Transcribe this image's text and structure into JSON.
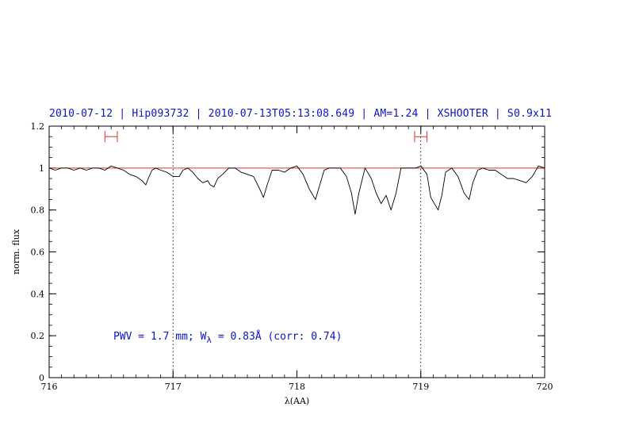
{
  "title": "2010-07-12 | Hip093732 | 2010-07-13T05:13:08.649 | AM=1.24 | XSHOOTER | S0.9x11",
  "colors": {
    "title": "#0a14c8",
    "spectrum": "#000000",
    "continuum": "#e03030",
    "markers": "#e03030",
    "annotation": "#0a14c8"
  },
  "chart_data": {
    "type": "line",
    "xlabel": "λ(AA)",
    "ylabel": "norm. flux",
    "xlim": [
      716,
      720
    ],
    "ylim": [
      0,
      1.2
    ],
    "xticks": [
      716,
      717,
      718,
      719,
      720
    ],
    "xtick_labels": [
      "716",
      "717",
      "718",
      "719",
      "720"
    ],
    "yticks": [
      0,
      0.2,
      0.4,
      0.6,
      0.8,
      1,
      1.2
    ],
    "ytick_labels": [
      "0",
      "0.2",
      "0.4",
      "0.6",
      "0.8",
      "1",
      "1.2"
    ],
    "continuum": 1.0,
    "vlines": [
      717.0,
      719.0
    ],
    "intervals": [
      {
        "x": [
          716.45,
          716.55
        ],
        "y": 1.15
      },
      {
        "x": [
          718.95,
          719.05
        ],
        "y": 1.15
      }
    ],
    "annotation": {
      "prefix": "PWV = 1.7 mm; W",
      "subscript": "λ",
      "suffix": " = 0.83Å (corr: 0.74)"
    },
    "series": [
      {
        "x": [
          716.0,
          716.05,
          716.1,
          716.15,
          716.2,
          716.25,
          716.3,
          716.35,
          716.4,
          716.45,
          716.5,
          716.55,
          716.6,
          716.65,
          716.7,
          716.75,
          716.78,
          716.8,
          716.83,
          716.86,
          716.9,
          716.95,
          717.0,
          717.05,
          717.08,
          717.12,
          717.16,
          717.2,
          717.24,
          717.28,
          717.3,
          717.33,
          717.36,
          717.4,
          717.45,
          717.5,
          717.55,
          717.6,
          717.65,
          717.7,
          717.73,
          717.76,
          717.8,
          717.85,
          717.9,
          717.95,
          718.0,
          718.05,
          718.1,
          718.15,
          718.18,
          718.22,
          718.26,
          718.3,
          718.35,
          718.4,
          718.44,
          718.47,
          718.5,
          718.55,
          718.6,
          718.64,
          718.68,
          718.72,
          718.76,
          718.8,
          718.84,
          718.88,
          718.92,
          718.96,
          719.0,
          719.05,
          719.08,
          719.11,
          719.14,
          719.17,
          719.2,
          719.25,
          719.3,
          719.35,
          719.39,
          719.42,
          719.46,
          719.5,
          719.55,
          719.6,
          719.65,
          719.7,
          719.75,
          719.8,
          719.85,
          719.9,
          719.95,
          720.0
        ],
        "y": [
          1.0,
          0.99,
          1.0,
          1.0,
          0.99,
          1.0,
          0.99,
          1.0,
          1.0,
          0.99,
          1.01,
          1.0,
          0.99,
          0.97,
          0.96,
          0.94,
          0.92,
          0.95,
          0.99,
          1.0,
          0.99,
          0.98,
          0.96,
          0.96,
          0.99,
          1.0,
          0.98,
          0.95,
          0.93,
          0.94,
          0.92,
          0.91,
          0.95,
          0.97,
          1.0,
          1.0,
          0.98,
          0.97,
          0.96,
          0.9,
          0.86,
          0.92,
          0.99,
          0.99,
          0.98,
          1.0,
          1.01,
          0.97,
          0.9,
          0.85,
          0.91,
          0.99,
          1.0,
          1.0,
          1.0,
          0.96,
          0.88,
          0.78,
          0.88,
          1.0,
          0.95,
          0.88,
          0.83,
          0.87,
          0.8,
          0.88,
          1.0,
          1.0,
          1.0,
          1.0,
          1.01,
          0.97,
          0.86,
          0.83,
          0.8,
          0.87,
          0.98,
          1.0,
          0.96,
          0.88,
          0.85,
          0.93,
          0.99,
          1.0,
          0.99,
          0.99,
          0.97,
          0.95,
          0.95,
          0.94,
          0.93,
          0.96,
          1.01,
          1.0
        ]
      }
    ]
  }
}
